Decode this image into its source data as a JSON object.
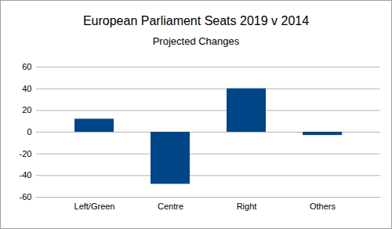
{
  "chart_data": {
    "type": "bar",
    "title": "European Parliament Seats 2019 v 2014",
    "subtitle": "Projected Changes",
    "categories": [
      "Left/Green",
      "Centre",
      "Right",
      "Others"
    ],
    "values": [
      12,
      -48,
      40,
      -3
    ],
    "color": "#004586",
    "ylim": [
      -60,
      60
    ],
    "yticks": [
      -60,
      -40,
      -20,
      0,
      20,
      40,
      60
    ],
    "grid": true
  }
}
